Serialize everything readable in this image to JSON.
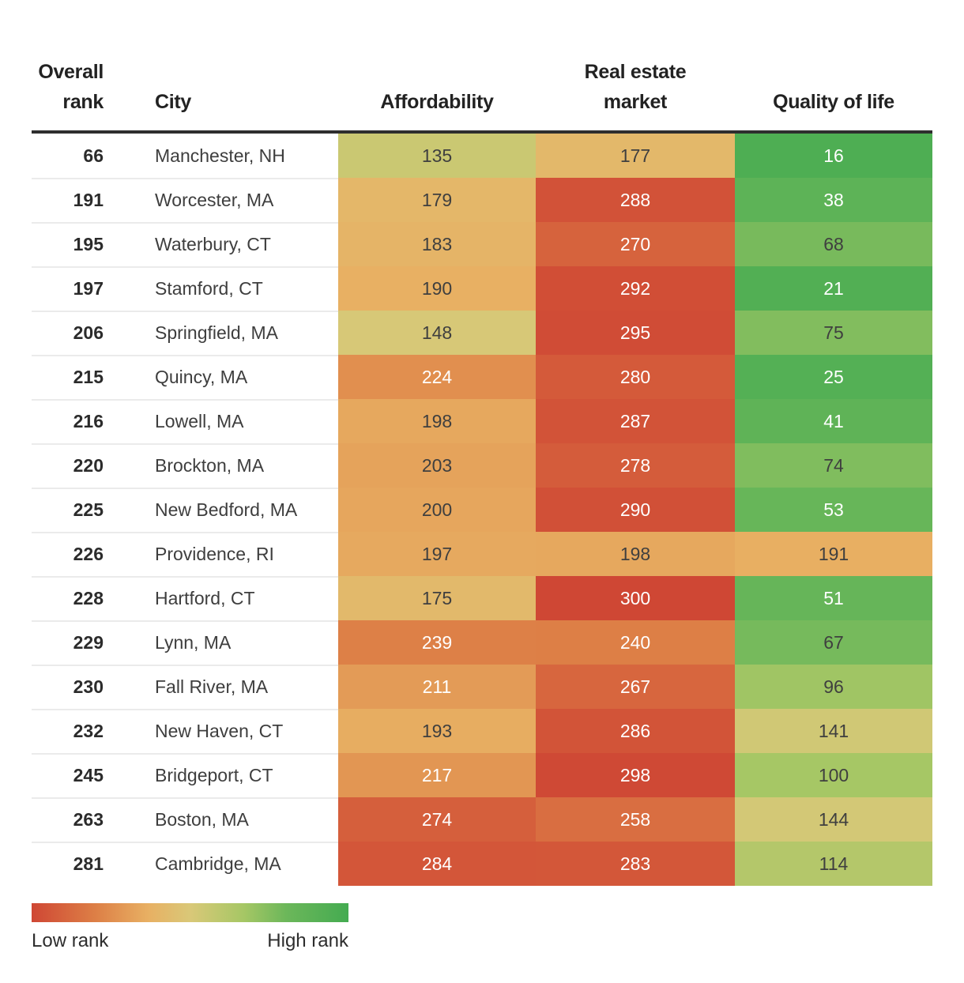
{
  "header": {
    "overall_rank": "Overall\nrank",
    "city": "City",
    "affordability": "Affordability",
    "real_estate_market": "Real estate\nmarket",
    "quality_of_life": "Quality of life"
  },
  "legend": {
    "low": "Low rank",
    "high": "High rank"
  },
  "heatmap": {
    "domain_min": 1,
    "domain_max": 300,
    "stops": [
      [
        1,
        "#44ab51"
      ],
      [
        60,
        "#6cb75a"
      ],
      [
        100,
        "#a6c765"
      ],
      [
        150,
        "#d9c878"
      ],
      [
        190,
        "#e8b063"
      ],
      [
        240,
        "#dd7f46"
      ],
      [
        300,
        "#cf4734"
      ]
    ],
    "white_text_max_green": 55,
    "white_text_min_red": 210,
    "dark_text": "#3f3f3f",
    "white_text": "#ffffff"
  },
  "chart_data": {
    "type": "table",
    "columns": [
      "Overall rank",
      "City",
      "Affordability",
      "Real estate market",
      "Quality of life"
    ],
    "legend": {
      "low_label": "Low rank",
      "high_label": "High rank"
    },
    "rows": [
      {
        "overall_rank": "66",
        "city": "Manchester, NH",
        "affordability": 135,
        "real_estate_market": 177,
        "quality_of_life": 16
      },
      {
        "overall_rank": "191",
        "city": "Worcester, MA",
        "affordability": 179,
        "real_estate_market": 288,
        "quality_of_life": 38
      },
      {
        "overall_rank": "195",
        "city": "Waterbury, CT",
        "affordability": 183,
        "real_estate_market": 270,
        "quality_of_life": 68
      },
      {
        "overall_rank": "197",
        "city": "Stamford, CT",
        "affordability": 190,
        "real_estate_market": 292,
        "quality_of_life": 21
      },
      {
        "overall_rank": "206",
        "city": "Springfield, MA",
        "affordability": 148,
        "real_estate_market": 295,
        "quality_of_life": 75
      },
      {
        "overall_rank": "215",
        "city": "Quincy, MA",
        "affordability": 224,
        "real_estate_market": 280,
        "quality_of_life": 25
      },
      {
        "overall_rank": "216",
        "city": "Lowell, MA",
        "affordability": 198,
        "real_estate_market": 287,
        "quality_of_life": 41
      },
      {
        "overall_rank": "220",
        "city": "Brockton, MA",
        "affordability": 203,
        "real_estate_market": 278,
        "quality_of_life": 74
      },
      {
        "overall_rank": "225",
        "city": "New Bedford, MA",
        "affordability": 200,
        "real_estate_market": 290,
        "quality_of_life": 53
      },
      {
        "overall_rank": "226",
        "city": "Providence, RI",
        "affordability": 197,
        "real_estate_market": 198,
        "quality_of_life": 191
      },
      {
        "overall_rank": "228",
        "city": "Hartford, CT",
        "affordability": 175,
        "real_estate_market": 300,
        "quality_of_life": 51
      },
      {
        "overall_rank": "229",
        "city": "Lynn, MA",
        "affordability": 239,
        "real_estate_market": 240,
        "quality_of_life": 67
      },
      {
        "overall_rank": "230",
        "city": "Fall River, MA",
        "affordability": 211,
        "real_estate_market": 267,
        "quality_of_life": 96
      },
      {
        "overall_rank": "232",
        "city": "New Haven, CT",
        "affordability": 193,
        "real_estate_market": 286,
        "quality_of_life": 141
      },
      {
        "overall_rank": "245",
        "city": "Bridgeport, CT",
        "affordability": 217,
        "real_estate_market": 298,
        "quality_of_life": 100
      },
      {
        "overall_rank": "263",
        "city": "Boston, MA",
        "affordability": 274,
        "real_estate_market": 258,
        "quality_of_life": 144
      },
      {
        "overall_rank": "281",
        "city": "Cambridge, MA",
        "affordability": 284,
        "real_estate_market": 283,
        "quality_of_life": 114
      }
    ]
  }
}
